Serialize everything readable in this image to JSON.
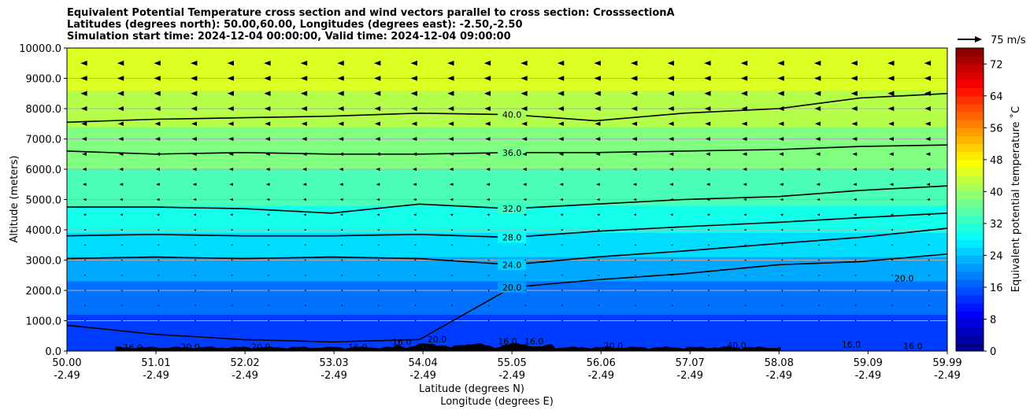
{
  "chart_data": {
    "type": "contour-cross-section",
    "title_lines": [
      "Equivalent Potential Temperature cross section and wind vectors parallel to cross section: CrosssectionA",
      "Latitudes (degrees north): 50.00,60.00, Longitudes (degrees east): -2.50,-2.50",
      "Simulation start time: 2024-12-04 00:00:00, Valid time: 2024-12-04 09:00:00"
    ],
    "ylabel": "Altitude (meters)",
    "xlabel_lat": "Latitude (degrees N)",
    "xlabel_lon": "Longitude (degrees E)",
    "ylim": [
      0,
      10000
    ],
    "yticks": [
      "0.0",
      "1000.0",
      "2000.0",
      "3000.0",
      "4000.0",
      "5000.0",
      "6000.0",
      "7000.0",
      "8000.0",
      "9000.0",
      "10000.0"
    ],
    "xlim": [
      50.0,
      59.99
    ],
    "xticks_lat": [
      "50.00",
      "51.01",
      "52.02",
      "53.03",
      "54.04",
      "55.05",
      "56.06",
      "57.07",
      "58.08",
      "59.09",
      "59.99"
    ],
    "xticks_lat_values": [
      50.0,
      51.01,
      52.02,
      53.03,
      54.04,
      55.05,
      56.06,
      57.07,
      58.08,
      59.09,
      59.99
    ],
    "xticks_lon": [
      "-2.49",
      "-2.49",
      "-2.49",
      "-2.49",
      "-2.49",
      "-2.49",
      "-2.49",
      "-2.49",
      "-2.49",
      "-2.49",
      "-2.49"
    ],
    "colorbar": {
      "label": "Equivalent potential temperature ˚C",
      "min": 0,
      "max": 76,
      "ticks": [
        "0",
        "8",
        "16",
        "24",
        "32",
        "40",
        "48",
        "56",
        "64",
        "72"
      ],
      "tick_values": [
        0,
        8,
        16,
        24,
        32,
        40,
        48,
        56,
        64,
        72
      ],
      "colormap": "jet"
    },
    "contour_lines": [
      {
        "level": 20,
        "label": "20.0",
        "profile_m": [
          [
            50.0,
            850
          ],
          [
            51.0,
            550
          ],
          [
            52.0,
            380
          ],
          [
            53.0,
            300
          ],
          [
            54.0,
            380
          ],
          [
            55.05,
            2100
          ],
          [
            56.0,
            2350
          ],
          [
            57.0,
            2550
          ],
          [
            58.08,
            2850
          ],
          [
            59.0,
            2950
          ],
          [
            59.99,
            3200
          ]
        ]
      },
      {
        "level": 24,
        "label": "24.0",
        "profile_m": [
          [
            50.0,
            3050
          ],
          [
            51.0,
            3100
          ],
          [
            52.0,
            3050
          ],
          [
            53.0,
            3100
          ],
          [
            54.0,
            3050
          ],
          [
            55.05,
            2850
          ],
          [
            56.0,
            3100
          ],
          [
            57.0,
            3300
          ],
          [
            58.08,
            3550
          ],
          [
            59.0,
            3750
          ],
          [
            59.99,
            4050
          ]
        ]
      },
      {
        "level": 28,
        "label": "28.0",
        "profile_m": [
          [
            50.0,
            3800
          ],
          [
            51.0,
            3850
          ],
          [
            52.0,
            3800
          ],
          [
            53.0,
            3800
          ],
          [
            54.0,
            3850
          ],
          [
            55.05,
            3750
          ],
          [
            56.0,
            3950
          ],
          [
            57.0,
            4100
          ],
          [
            58.08,
            4250
          ],
          [
            59.0,
            4400
          ],
          [
            59.99,
            4550
          ]
        ]
      },
      {
        "level": 32,
        "label": "32.0",
        "profile_m": [
          [
            50.0,
            4750
          ],
          [
            51.0,
            4750
          ],
          [
            52.0,
            4700
          ],
          [
            53.0,
            4550
          ],
          [
            54.0,
            4850
          ],
          [
            55.05,
            4700
          ],
          [
            56.0,
            4850
          ],
          [
            57.0,
            5000
          ],
          [
            58.08,
            5100
          ],
          [
            59.0,
            5300
          ],
          [
            59.99,
            5450
          ]
        ]
      },
      {
        "level": 36,
        "label": "36.0",
        "profile_m": [
          [
            50.0,
            6600
          ],
          [
            51.0,
            6500
          ],
          [
            52.0,
            6550
          ],
          [
            53.0,
            6500
          ],
          [
            54.0,
            6500
          ],
          [
            55.05,
            6550
          ],
          [
            56.0,
            6550
          ],
          [
            57.0,
            6600
          ],
          [
            58.08,
            6650
          ],
          [
            59.0,
            6750
          ],
          [
            59.99,
            6800
          ]
        ]
      },
      {
        "level": 40,
        "label": "40.0",
        "profile_m": [
          [
            50.0,
            7550
          ],
          [
            51.0,
            7650
          ],
          [
            52.0,
            7700
          ],
          [
            53.0,
            7750
          ],
          [
            54.0,
            7850
          ],
          [
            55.05,
            7800
          ],
          [
            56.0,
            7600
          ],
          [
            57.0,
            7850
          ],
          [
            58.08,
            8000
          ],
          [
            59.0,
            8350
          ],
          [
            59.99,
            8500
          ]
        ]
      }
    ],
    "other_contour_labels": [
      "16.0",
      "20.0",
      "20.0",
      "16.0",
      "16.0",
      "20.0",
      "16.0",
      "16.0",
      "20.0",
      "40.0",
      "16.0",
      "16.0",
      "20.0"
    ],
    "filled_bands_m": [
      {
        "value": 14,
        "top": 1200
      },
      {
        "value": 18,
        "top": 2300
      },
      {
        "value": 22,
        "top": 3100
      },
      {
        "value": 26,
        "top": 3900
      },
      {
        "value": 30,
        "top": 4800
      },
      {
        "value": 34,
        "top": 6000
      },
      {
        "value": 38,
        "top": 7400
      },
      {
        "value": 42,
        "top": 8600
      },
      {
        "value": 45,
        "top": 10000
      }
    ],
    "wind_reference": {
      "label": "75 m/s",
      "speed_ms": 75
    },
    "wind_vector_direction": "west (toward lower latitude)",
    "wind_rows_m": [
      1000,
      1500,
      2000,
      2500,
      3000,
      3500,
      4000,
      4500,
      5000,
      5500,
      6000,
      6500,
      7000,
      7500,
      8000,
      8500,
      9000,
      9500
    ],
    "terrain": "black orography silhouette near 0 m between ~50.6 and ~58.1 degrees N"
  }
}
